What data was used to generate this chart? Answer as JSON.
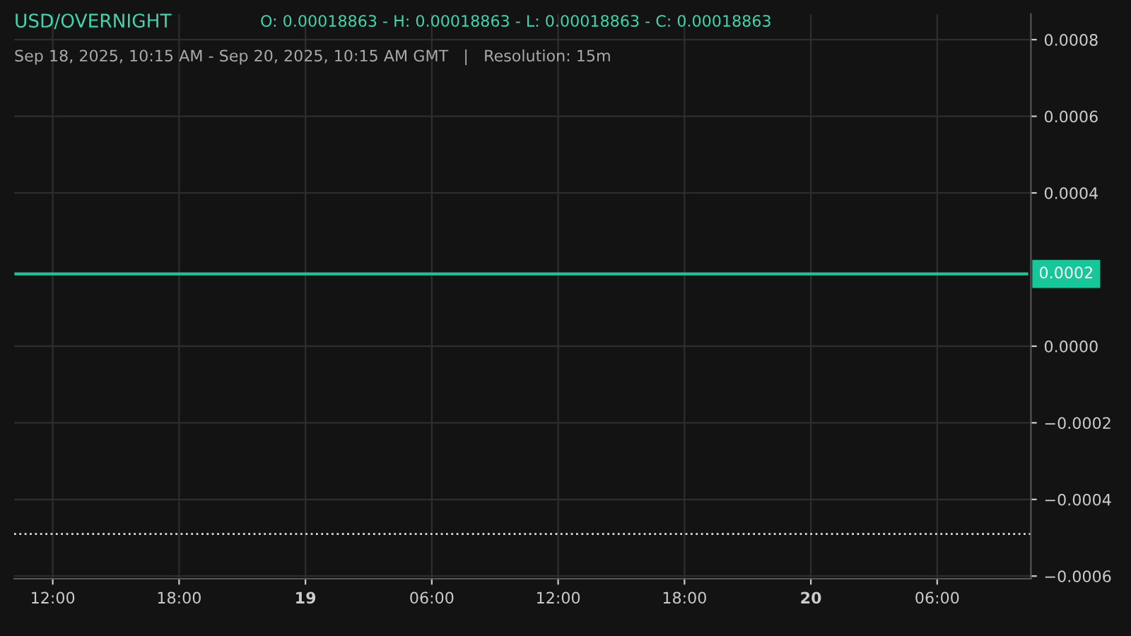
{
  "chart_data": {
    "type": "line",
    "title": "USD/OVERNIGHT",
    "subtitle": "Sep 18, 2025, 10:15 AM - Sep 20, 2025, 10:15 AM GMT   |   Resolution: 15m",
    "annotations": [
      "O: 0.00018863 - H: 0.00018863 - L: 0.00018863 - C: 0.00018863",
      "0.0002"
    ],
    "series": [
      {
        "color": "#16c79a",
        "x": [
          "2025-09-18T10:15",
          "2025-09-20T10:15"
        ],
        "values": [
          0.00018863,
          0.00018863
        ]
      }
    ],
    "ref_lines": [
      {
        "axis": "y",
        "value": -0.00049,
        "color": "#dddddd",
        "line_style": "dotted"
      }
    ],
    "xlim": [
      "2025-09-18T10:10",
      "2025-09-20T10:27"
    ],
    "xticks": [
      {
        "value": "2025-09-18T12:00",
        "label": "12:00"
      },
      {
        "value": "2025-09-18T18:00",
        "label": "18:00"
      },
      {
        "value": "2025-09-19T00:00",
        "label": "19"
      },
      {
        "value": "2025-09-19T06:00",
        "label": "06:00"
      },
      {
        "value": "2025-09-19T12:00",
        "label": "12:00"
      },
      {
        "value": "2025-09-19T18:00",
        "label": "18:00"
      },
      {
        "value": "2025-09-20T00:00",
        "label": "20"
      },
      {
        "value": "2025-09-20T06:00",
        "label": "06:00"
      }
    ],
    "ylim": [
      -0.000607,
      0.000867
    ],
    "yticks": [
      {
        "value": 0.0008,
        "label": "0.0008"
      },
      {
        "value": 0.0006,
        "label": "0.0006"
      },
      {
        "value": 0.0004,
        "label": "0.0004"
      },
      {
        "value": 0,
        "label": "0.0000"
      },
      {
        "value": -0.0002,
        "label": "−0.0002"
      },
      {
        "value": -0.0004,
        "label": "−0.0004"
      },
      {
        "value": -0.0006,
        "label": "−0.0006"
      }
    ],
    "grid": true,
    "legend": false
  }
}
